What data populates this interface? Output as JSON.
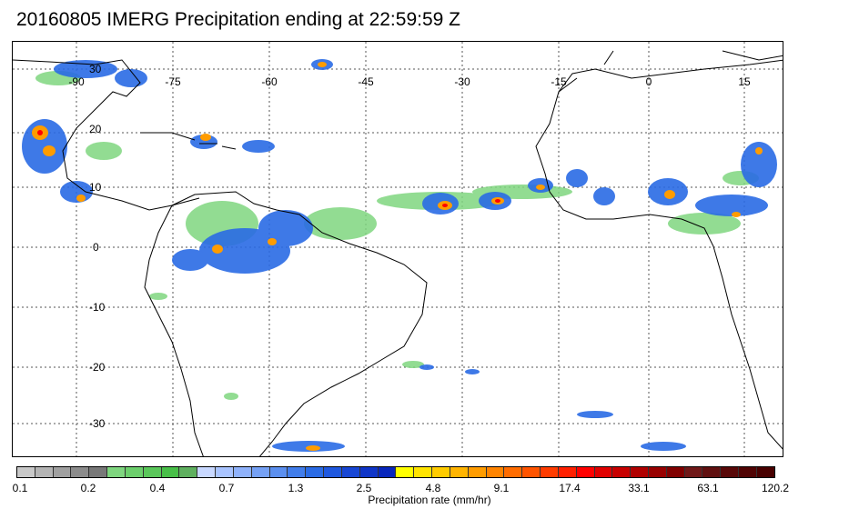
{
  "title": "20160805 IMERG Precipitation ending at 22:59:59 Z",
  "map": {
    "lon_labels": [
      "-90",
      "-75",
      "-60",
      "-45",
      "-30",
      "-15",
      "0",
      "15"
    ],
    "lat_labels": [
      "30",
      "20",
      "10",
      "0",
      "-10",
      "-20",
      "-30"
    ]
  },
  "colorbar": {
    "label": "Precipitation rate (mm/hr)",
    "tick_labels": [
      "0.1",
      "0.2",
      "0.4",
      "0.7",
      "1.3",
      "2.5",
      "4.8",
      "9.1",
      "17.4",
      "33.1",
      "63.1",
      "120.2"
    ],
    "colors": [
      "#c8c8c8",
      "#b4b4b4",
      "#a0a0a0",
      "#8c8c8c",
      "#787878",
      "#7fd67f",
      "#6ccf6c",
      "#5ac75a",
      "#48bf48",
      "#5fb05f",
      "#c8d8ff",
      "#a9c4ff",
      "#8fb2fb",
      "#75a1f5",
      "#5b8fef",
      "#417deb",
      "#2a6be5",
      "#1f58df",
      "#1746d4",
      "#0f35c8",
      "#0826bc",
      "#ffff00",
      "#ffe400",
      "#ffcc00",
      "#ffb400",
      "#ff9c00",
      "#ff8400",
      "#ff6c00",
      "#ff5400",
      "#ff3c00",
      "#ff2000",
      "#ff0000",
      "#e00000",
      "#c80000",
      "#b00000",
      "#980000",
      "#800000",
      "#701818",
      "#601010",
      "#580808",
      "#500404",
      "#480000"
    ]
  }
}
